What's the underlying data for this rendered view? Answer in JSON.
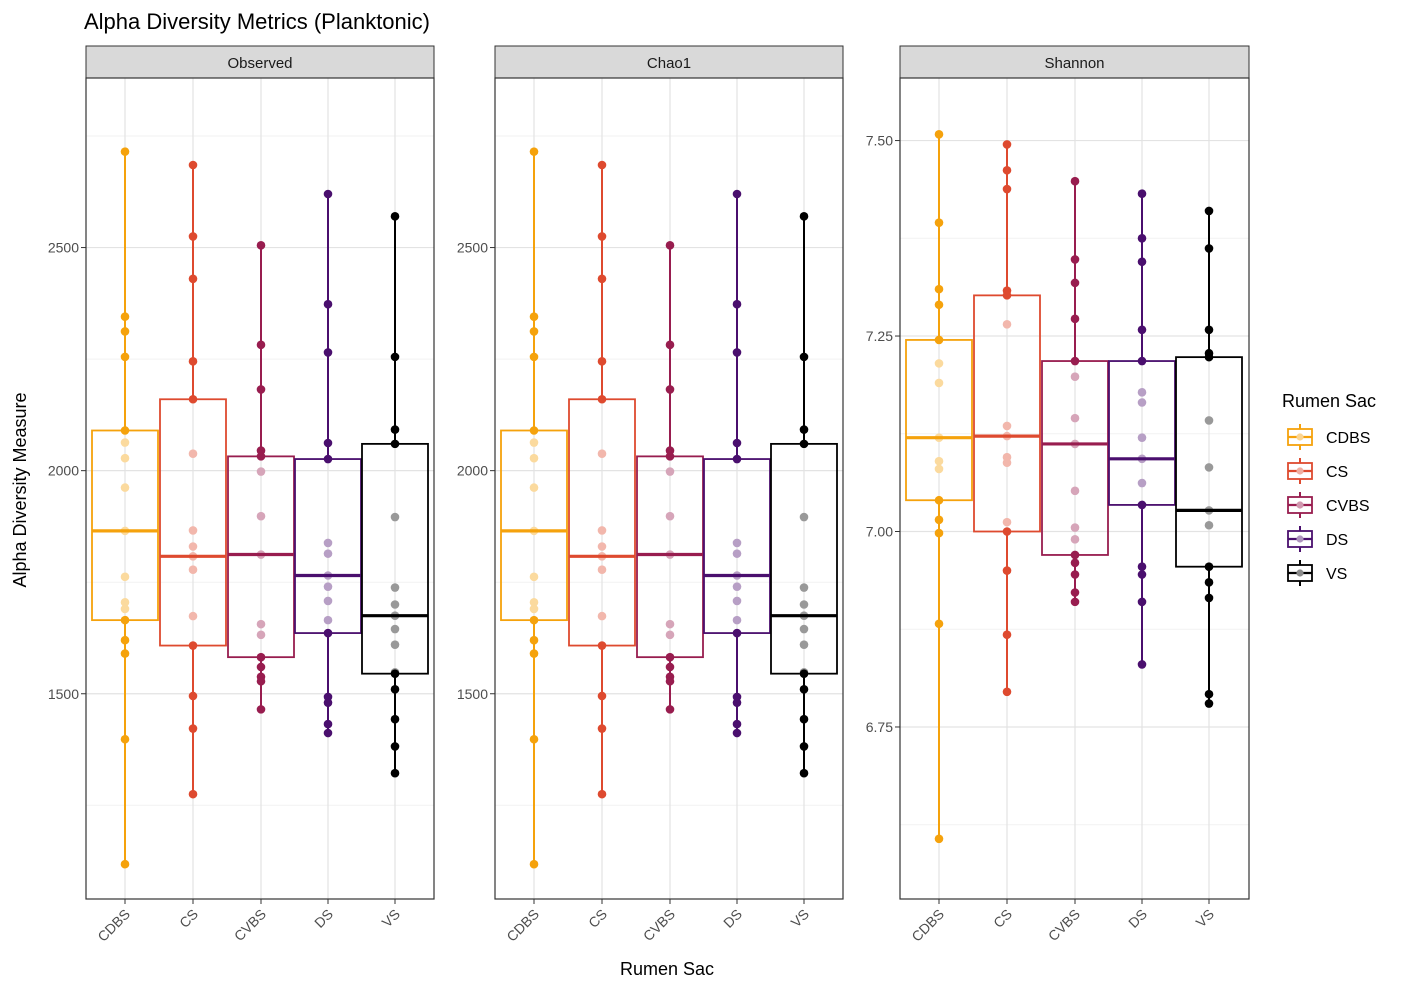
{
  "chart_data": {
    "type": "box",
    "title": "Alpha Diversity Metrics (Planktonic)",
    "xlabel": "Rumen Sac",
    "ylabel": "Alpha Diversity Measure",
    "categories": [
      "CDBS",
      "CS",
      "CVBS",
      "DS",
      "VS"
    ],
    "colors": {
      "CDBS": "#f5a20c",
      "CS": "#de4a2f",
      "CVBS": "#981d4f",
      "DS": "#4a0f6e",
      "VS": "#000000"
    },
    "legend": {
      "title": "Rumen Sac",
      "position": "right",
      "entries": [
        "CDBS",
        "CS",
        "CVBS",
        "DS",
        "VS"
      ]
    },
    "panels": [
      {
        "name": "Observed",
        "ylim": [
          1040,
          2880
        ],
        "yticks": [
          1500,
          2000,
          2500
        ],
        "ytick_labels": [
          "1500",
          "2000",
          "2500"
        ],
        "minor_grid": [
          1250,
          1750,
          2250,
          2750
        ],
        "groups": [
          {
            "category": "CDBS",
            "q1": 1665,
            "median": 1865,
            "q3": 2090,
            "points": [
              2715,
              2345,
              2312,
              2255,
              2090,
              2063,
              2028,
              1962,
              1865,
              1762,
              1705,
              1690,
              1665,
              1620,
              1590,
              1398,
              1118
            ]
          },
          {
            "category": "CS",
            "q1": 1608,
            "median": 1808,
            "q3": 2160,
            "points": [
              2685,
              2525,
              2430,
              2245,
              2160,
              2038,
              1866,
              1830,
              1808,
              1778,
              1674,
              1608,
              1495,
              1422,
              1275
            ]
          },
          {
            "category": "CVBS",
            "q1": 1582,
            "median": 1812,
            "q3": 2032,
            "points": [
              2505,
              2282,
              2182,
              2045,
              2032,
              1998,
              1898,
              1812,
              1656,
              1632,
              1582,
              1560,
              1538,
              1528,
              1465
            ]
          },
          {
            "category": "DS",
            "q1": 1636,
            "median": 1765,
            "q3": 2026,
            "points": [
              2620,
              2373,
              2265,
              2062,
              2026,
              1838,
              1814,
              1765,
              1740,
              1708,
              1665,
              1636,
              1493,
              1480,
              1432,
              1412
            ]
          },
          {
            "category": "VS",
            "q1": 1545,
            "median": 1675,
            "q3": 2060,
            "points": [
              2570,
              2255,
              2092,
              2060,
              1896,
              1738,
              1700,
              1675,
              1645,
              1610,
              1548,
              1545,
              1510,
              1443,
              1382,
              1322
            ]
          }
        ]
      },
      {
        "name": "Chao1",
        "ylim": [
          1040,
          2880
        ],
        "yticks": [
          1500,
          2000,
          2500
        ],
        "ytick_labels": [
          "1500",
          "2000",
          "2500"
        ],
        "minor_grid": [
          1250,
          1750,
          2250,
          2750
        ],
        "groups": [
          {
            "category": "CDBS",
            "q1": 1665,
            "median": 1865,
            "q3": 2090,
            "points": [
              2715,
              2345,
              2312,
              2255,
              2090,
              2063,
              2028,
              1962,
              1865,
              1762,
              1705,
              1690,
              1665,
              1620,
              1590,
              1398,
              1118
            ]
          },
          {
            "category": "CS",
            "q1": 1608,
            "median": 1808,
            "q3": 2160,
            "points": [
              2685,
              2525,
              2430,
              2245,
              2160,
              2038,
              1866,
              1830,
              1808,
              1778,
              1674,
              1608,
              1495,
              1422,
              1275
            ]
          },
          {
            "category": "CVBS",
            "q1": 1582,
            "median": 1812,
            "q3": 2032,
            "points": [
              2505,
              2282,
              2182,
              2045,
              2032,
              1998,
              1898,
              1812,
              1656,
              1632,
              1582,
              1560,
              1538,
              1528,
              1465
            ]
          },
          {
            "category": "DS",
            "q1": 1636,
            "median": 1765,
            "q3": 2026,
            "points": [
              2620,
              2373,
              2265,
              2062,
              2026,
              1838,
              1814,
              1765,
              1740,
              1708,
              1665,
              1636,
              1493,
              1480,
              1432,
              1412
            ]
          },
          {
            "category": "VS",
            "q1": 1545,
            "median": 1675,
            "q3": 2060,
            "points": [
              2570,
              2255,
              2092,
              2060,
              1896,
              1738,
              1700,
              1675,
              1645,
              1610,
              1548,
              1545,
              1510,
              1443,
              1382,
              1322
            ]
          }
        ]
      },
      {
        "name": "Shannon",
        "ylim": [
          6.53,
          7.58
        ],
        "yticks": [
          6.75,
          7.0,
          7.25,
          7.5
        ],
        "ytick_labels": [
          "6.75",
          "7.00",
          "7.25",
          "7.50"
        ],
        "minor_grid": [
          6.625,
          6.875,
          7.125,
          7.375
        ],
        "groups": [
          {
            "category": "CDBS",
            "q1": 7.04,
            "median": 7.12,
            "q3": 7.245,
            "points": [
              7.508,
              7.395,
              7.31,
              7.29,
              7.245,
              7.215,
              7.19,
              7.12,
              7.09,
              7.08,
              7.04,
              7.015,
              6.998,
              6.882,
              6.607
            ]
          },
          {
            "category": "CS",
            "q1": 7.0,
            "median": 7.122,
            "q3": 7.302,
            "points": [
              7.495,
              7.462,
              7.438,
              7.308,
              7.302,
              7.265,
              7.135,
              7.122,
              7.095,
              7.088,
              7.012,
              7.0,
              6.95,
              6.868,
              6.795
            ]
          },
          {
            "category": "CVBS",
            "q1": 6.97,
            "median": 7.112,
            "q3": 7.218,
            "points": [
              7.448,
              7.348,
              7.318,
              7.272,
              7.218,
              7.198,
              7.145,
              7.112,
              7.052,
              7.005,
              6.99,
              6.97,
              6.96,
              6.945,
              6.922,
              6.91
            ]
          },
          {
            "category": "DS",
            "q1": 7.034,
            "median": 7.093,
            "q3": 7.218,
            "points": [
              7.432,
              7.375,
              7.345,
              7.258,
              7.218,
              7.178,
              7.165,
              7.12,
              7.093,
              7.062,
              7.034,
              6.955,
              6.945,
              6.91,
              6.83
            ]
          },
          {
            "category": "VS",
            "q1": 6.955,
            "median": 7.027,
            "q3": 7.223,
            "points": [
              7.41,
              7.362,
              7.258,
              7.228,
              7.223,
              7.142,
              7.082,
              7.027,
              7.008,
              6.955,
              6.935,
              6.915,
              6.792,
              6.78
            ]
          }
        ]
      }
    ]
  }
}
